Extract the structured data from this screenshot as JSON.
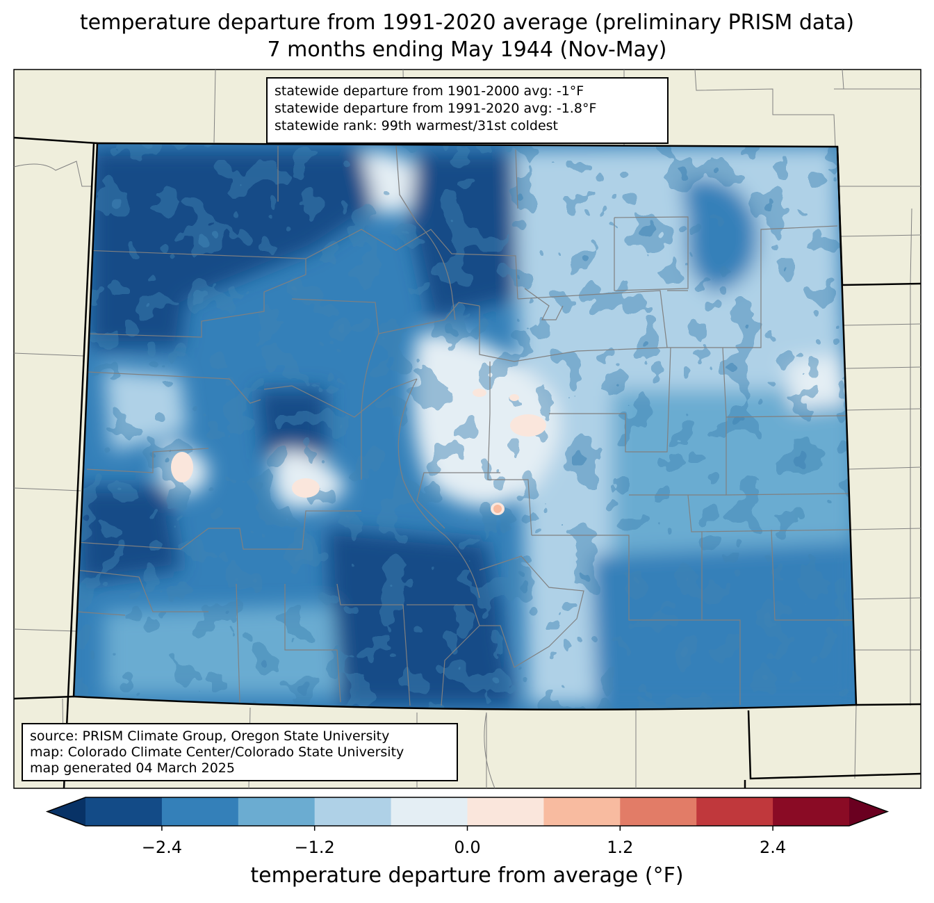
{
  "title": {
    "line1": "temperature departure from 1991-2020 average (preliminary PRISM data)",
    "line2": "7 months ending May 1944 (Nov-May)"
  },
  "stats": {
    "line1": "statewide departure from 1901-2000 avg: -1°F",
    "line2": "statewide departure from 1991-2020 avg: -1.8°F",
    "line3": "statewide rank: 99th warmest/31st coldest"
  },
  "credits": {
    "line1": "source: PRISM Climate Group, Oregon State University",
    "line2": "map: Colorado Climate Center/Colorado State University",
    "line3": "map generated 04 March 2025"
  },
  "colorbar": {
    "label": "temperature departure from average (°F)",
    "bins": [
      -3.0,
      -2.4,
      -1.8,
      -1.2,
      -0.6,
      0.0,
      0.6,
      1.2,
      1.8,
      2.4,
      3.0
    ],
    "colors": [
      "#134b87",
      "#3480b9",
      "#6bacd1",
      "#afd1e7",
      "#e4eef4",
      "#fae6dc",
      "#f8bba0",
      "#e27c67",
      "#c0383c",
      "#8a0b25"
    ],
    "extend_low_color": "#083266",
    "extend_high_color": "#6a0020",
    "ticks": [
      "−2.4",
      "−1.2",
      "0.0",
      "1.2",
      "2.4"
    ],
    "tick_values": [
      -2.4,
      -1.2,
      0.0,
      1.2,
      2.4
    ]
  },
  "colors": {
    "land": "#efeedc",
    "neighbor_county_lines": "#808080",
    "state_lines": "#000000"
  }
}
